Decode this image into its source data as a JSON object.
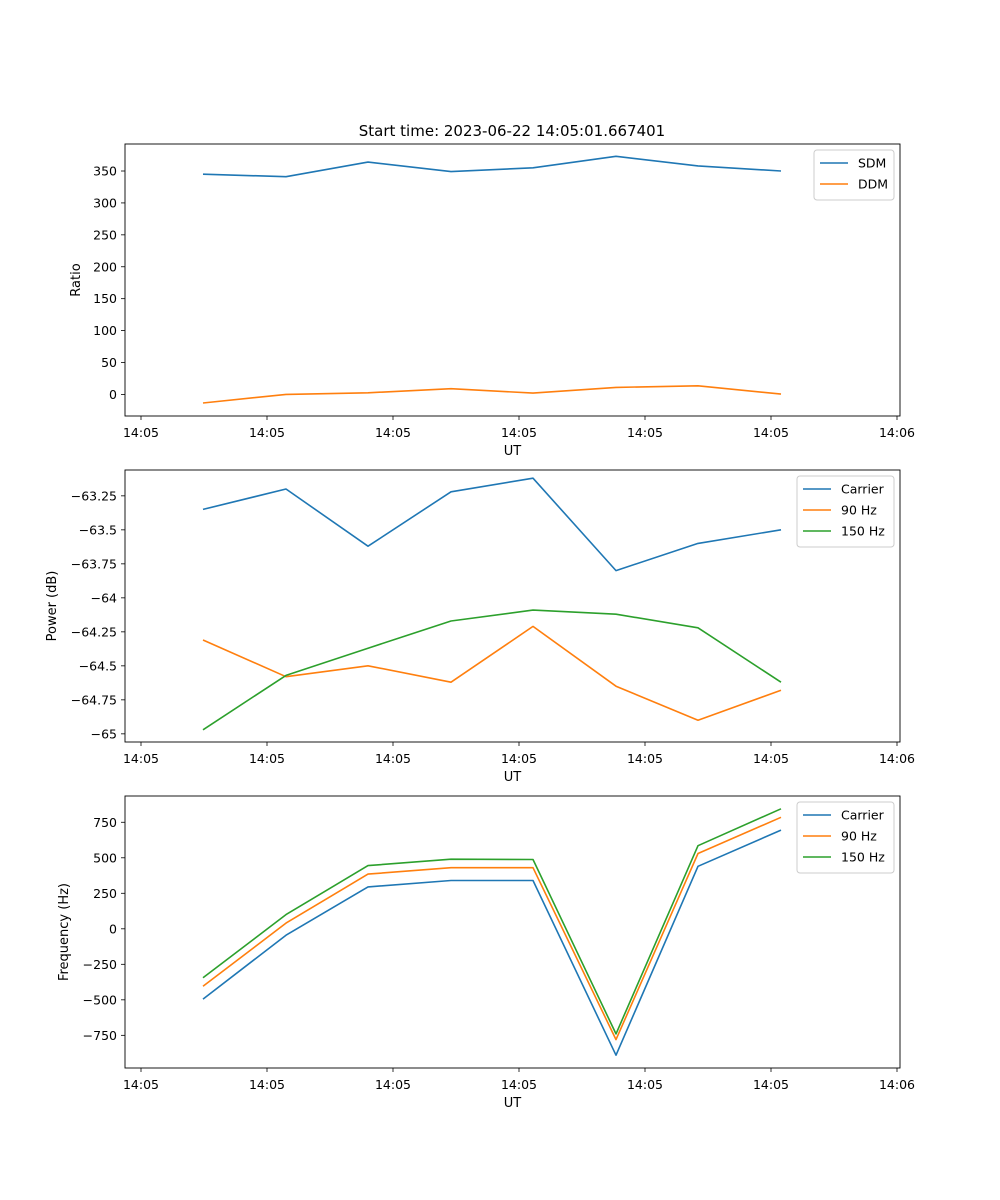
{
  "figure": {
    "title": "Start time: 2023-06-22 14:05:01.667401"
  },
  "chart_data": [
    {
      "type": "line",
      "xlabel": "UT",
      "ylabel": "Ratio",
      "x_tick_labels": [
        "14:05",
        "14:05",
        "14:05",
        "14:05",
        "14:05",
        "14:05",
        "14:05",
        "14:05",
        "14:06"
      ],
      "y_ticks": [
        0,
        50,
        100,
        150,
        200,
        250,
        300,
        350
      ],
      "ylim": [
        -33.8,
        392.3
      ],
      "legend_position": "upper-right",
      "series": [
        {
          "name": "SDM",
          "color": "#1f77b4",
          "values": [
            345,
            341,
            364,
            349,
            355,
            373,
            358,
            350
          ]
        },
        {
          "name": "DDM",
          "color": "#ff7f0e",
          "values": [
            -13.5,
            0,
            2.5,
            9,
            2,
            11,
            13.5,
            0.5
          ]
        }
      ]
    },
    {
      "type": "line",
      "xlabel": "UT",
      "ylabel": "Power (dB)",
      "x_tick_labels": [
        "14:05",
        "14:05",
        "14:05",
        "14:05",
        "14:05",
        "14:05",
        "14:05",
        "14:05",
        "14:06"
      ],
      "y_ticks": [
        -65.0,
        -64.75,
        -64.5,
        -64.25,
        -64.0,
        -63.75,
        -63.5,
        -63.25
      ],
      "ylim": [
        -65.06,
        -63.06
      ],
      "legend_position": "upper-right",
      "series": [
        {
          "name": "Carrier",
          "color": "#1f77b4",
          "values": [
            -63.35,
            -63.2,
            -63.62,
            -63.22,
            -63.12,
            -63.8,
            -63.6,
            -63.5
          ]
        },
        {
          "name": "90 Hz",
          "color": "#ff7f0e",
          "values": [
            -64.31,
            -64.58,
            -64.5,
            -64.62,
            -64.21,
            -64.65,
            -64.9,
            -64.68
          ]
        },
        {
          "name": "150 Hz",
          "color": "#2ca02c",
          "values": [
            -64.97,
            -64.57,
            -64.37,
            -64.17,
            -64.09,
            -64.12,
            -64.22,
            -64.62
          ]
        }
      ]
    },
    {
      "type": "line",
      "xlabel": "UT",
      "ylabel": "Frequency (Hz)",
      "x_tick_labels": [
        "14:05",
        "14:05",
        "14:05",
        "14:05",
        "14:05",
        "14:05",
        "14:05",
        "14:05",
        "14:06"
      ],
      "y_ticks": [
        -750,
        -500,
        -250,
        0,
        250,
        500,
        750
      ],
      "ylim": [
        -980,
        935
      ],
      "legend_position": "upper-right",
      "series": [
        {
          "name": "Carrier",
          "color": "#1f77b4",
          "values": [
            -495,
            -45,
            295,
            340,
            340,
            -890,
            440,
            695
          ]
        },
        {
          "name": "90 Hz",
          "color": "#ff7f0e",
          "values": [
            -405,
            40,
            385,
            430,
            430,
            -780,
            530,
            785
          ]
        },
        {
          "name": "150 Hz",
          "color": "#2ca02c",
          "values": [
            -345,
            100,
            445,
            490,
            488,
            -740,
            585,
            845
          ]
        }
      ]
    }
  ]
}
